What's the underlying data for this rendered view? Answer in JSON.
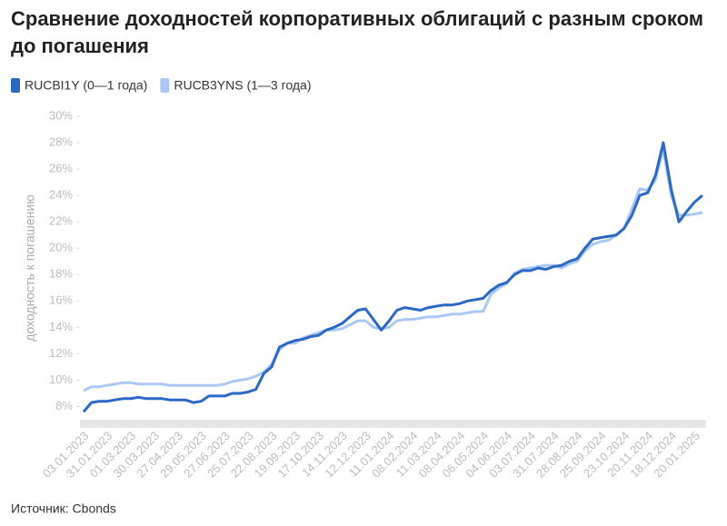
{
  "chart_data": {
    "type": "line",
    "title": "Сравнение доходностей корпоративных облигаций с разным сроком до погашения",
    "y_label": "доходность к погашению",
    "source": "Источник: Cbonds",
    "categories": [
      "03.01.2023",
      null,
      null,
      "31.01.2023",
      null,
      null,
      "01.03.2023",
      null,
      null,
      "30.03.2023",
      null,
      null,
      "27.04.2023",
      null,
      null,
      "29.05.2023",
      null,
      null,
      "27.06.2023",
      null,
      null,
      "25.07.2023",
      null,
      null,
      "22.08.2023",
      null,
      null,
      "19.09.2023",
      null,
      null,
      "17.10.2023",
      null,
      null,
      "14.11.2023",
      null,
      null,
      "12.12.2023",
      null,
      null,
      "11.01.2024",
      null,
      null,
      "08.02.2024",
      null,
      null,
      "11.03.2024",
      null,
      null,
      "08.04.2024",
      null,
      null,
      "06.05.2024",
      null,
      null,
      "04.06.2024",
      null,
      null,
      "03.07.2024",
      null,
      null,
      "31.07.2024",
      null,
      null,
      "28.08.2024",
      null,
      null,
      "25.09.2024",
      null,
      null,
      "23.10.2024",
      null,
      null,
      "20.11.2024",
      null,
      null,
      "18.12.2024",
      null,
      null,
      "20.01.2025",
      null
    ],
    "series": [
      {
        "name": "RUCBI1Y (0—1 года)",
        "color": "#2a67c7",
        "values": [
          7.6,
          8.3,
          8.4,
          8.4,
          8.5,
          8.6,
          8.6,
          8.7,
          8.6,
          8.6,
          8.6,
          8.5,
          8.5,
          8.5,
          8.3,
          8.4,
          8.8,
          8.8,
          8.8,
          9.0,
          9.0,
          9.1,
          9.3,
          10.5,
          11.0,
          12.5,
          12.8,
          13.0,
          13.1,
          13.3,
          13.4,
          13.8,
          14.0,
          14.3,
          14.8,
          15.3,
          15.4,
          14.6,
          13.8,
          14.5,
          15.3,
          15.5,
          15.4,
          15.3,
          15.5,
          15.6,
          15.7,
          15.7,
          15.8,
          16.0,
          16.1,
          16.2,
          16.8,
          17.2,
          17.4,
          18.0,
          18.3,
          18.3,
          18.5,
          18.4,
          18.6,
          18.7,
          19.0,
          19.2,
          20.0,
          20.7,
          20.8,
          20.9,
          21.0,
          21.5,
          22.5,
          24.0,
          24.2,
          25.5,
          28.0,
          24.5,
          22.0,
          22.8,
          23.5,
          24.0
        ]
      },
      {
        "name": "RUCB3YNS (1—3 года)",
        "color": "#a9c8f5",
        "values": [
          9.2,
          9.5,
          9.5,
          9.6,
          9.7,
          9.8,
          9.8,
          9.7,
          9.7,
          9.7,
          9.7,
          9.6,
          9.6,
          9.6,
          9.6,
          9.6,
          9.6,
          9.6,
          9.7,
          9.9,
          10.0,
          10.1,
          10.3,
          10.6,
          11.2,
          12.3,
          12.8,
          12.8,
          13.2,
          13.4,
          13.6,
          13.8,
          13.8,
          13.9,
          14.2,
          14.5,
          14.5,
          14.0,
          13.9,
          14.0,
          14.5,
          14.6,
          14.6,
          14.7,
          14.8,
          14.8,
          14.9,
          15.0,
          15.0,
          15.1,
          15.2,
          15.2,
          16.5,
          17.0,
          17.3,
          18.1,
          18.4,
          18.5,
          18.6,
          18.7,
          18.7,
          18.5,
          18.8,
          19.0,
          19.8,
          20.3,
          20.5,
          20.6,
          21.0,
          21.5,
          23.0,
          24.5,
          24.4,
          25.2,
          27.5,
          24.0,
          22.5,
          22.5,
          22.6,
          22.7
        ]
      }
    ],
    "ylim": [
      7,
      30
    ],
    "yticks": [
      {
        "value": 8,
        "label": "8%"
      },
      {
        "value": 10,
        "label": "10%"
      },
      {
        "value": 12,
        "label": "12%"
      },
      {
        "value": 14,
        "label": "14%"
      },
      {
        "value": 16,
        "label": "16%"
      },
      {
        "value": 18,
        "label": "18%"
      },
      {
        "value": 20,
        "label": "20%"
      },
      {
        "value": 22,
        "label": "22%"
      },
      {
        "value": 24,
        "label": "24%"
      },
      {
        "value": 26,
        "label": "26%"
      },
      {
        "value": 28,
        "label": "28%"
      },
      {
        "value": 30,
        "label": "30%"
      }
    ],
    "grid": false
  }
}
